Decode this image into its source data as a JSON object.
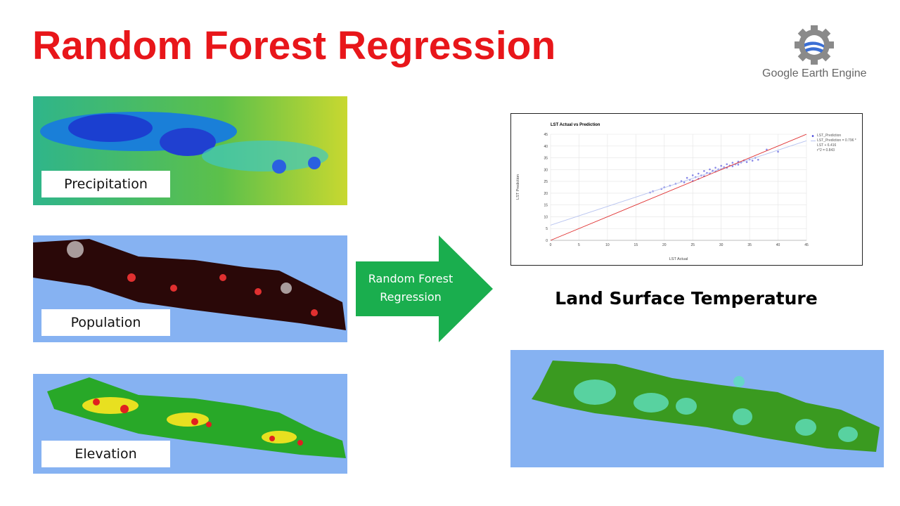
{
  "header": {
    "title": "Random Forest Regression"
  },
  "logo": {
    "text": "Google Earth Engine"
  },
  "inputs": [
    {
      "label": "Precipitation"
    },
    {
      "label": "Population"
    },
    {
      "label": "Elevation"
    }
  ],
  "arrow": {
    "label": "Random Forest Regression"
  },
  "chart_data": {
    "type": "scatter",
    "title": "LST Actual vs Prediction",
    "x_label": "LST Actual",
    "y_label": "LST Prediction",
    "xlim": [
      0,
      45
    ],
    "ylim": [
      0,
      45
    ],
    "xticks": [
      0,
      5,
      10,
      15,
      20,
      25,
      30,
      35,
      40,
      45
    ],
    "yticks": [
      0,
      5,
      10,
      15,
      20,
      25,
      30,
      35,
      40,
      45
    ],
    "grid": true,
    "series": [
      {
        "name": "LST_Prediction",
        "color": "#3a3ad8",
        "x": [
          17.5,
          18,
          19.5,
          20,
          21,
          22,
          23,
          23.5,
          24,
          24.5,
          25,
          25,
          25.5,
          26,
          26,
          26.5,
          27,
          27,
          27.5,
          28,
          28,
          28.5,
          29,
          29,
          29.5,
          30,
          30,
          30.5,
          31,
          31,
          31.5,
          32,
          32,
          32.5,
          33,
          33,
          33.5,
          34,
          34.5,
          35,
          35.5,
          36,
          36.5,
          38,
          40
        ],
        "values": [
          20.3,
          20.8,
          21.8,
          22.5,
          23.2,
          24,
          25.1,
          24.6,
          26.5,
          25.7,
          27.6,
          25.2,
          26.8,
          28.3,
          26.1,
          27.5,
          29.4,
          27.2,
          28.6,
          30.1,
          28.4,
          29.5,
          30.8,
          29.2,
          30.1,
          31.6,
          30.2,
          31,
          32.3,
          30.8,
          31.7,
          32.9,
          31.4,
          32.2,
          33.4,
          32.1,
          33,
          33.9,
          33.2,
          34.3,
          33.8,
          35,
          34.2,
          38.5,
          37.6
        ]
      },
      {
        "type": "line",
        "name": "LST_Prediction = 0.796 * LST + 6.416",
        "color": "#b8c4f0",
        "x": [
          0,
          45
        ],
        "values": [
          6.416,
          42.236
        ]
      },
      {
        "type": "line",
        "color": "#e03030",
        "x": [
          0,
          45
        ],
        "values": [
          0,
          45
        ]
      }
    ],
    "r2_label": "r^2 = 0.843"
  },
  "output": {
    "title": "Land Surface Temperature"
  }
}
